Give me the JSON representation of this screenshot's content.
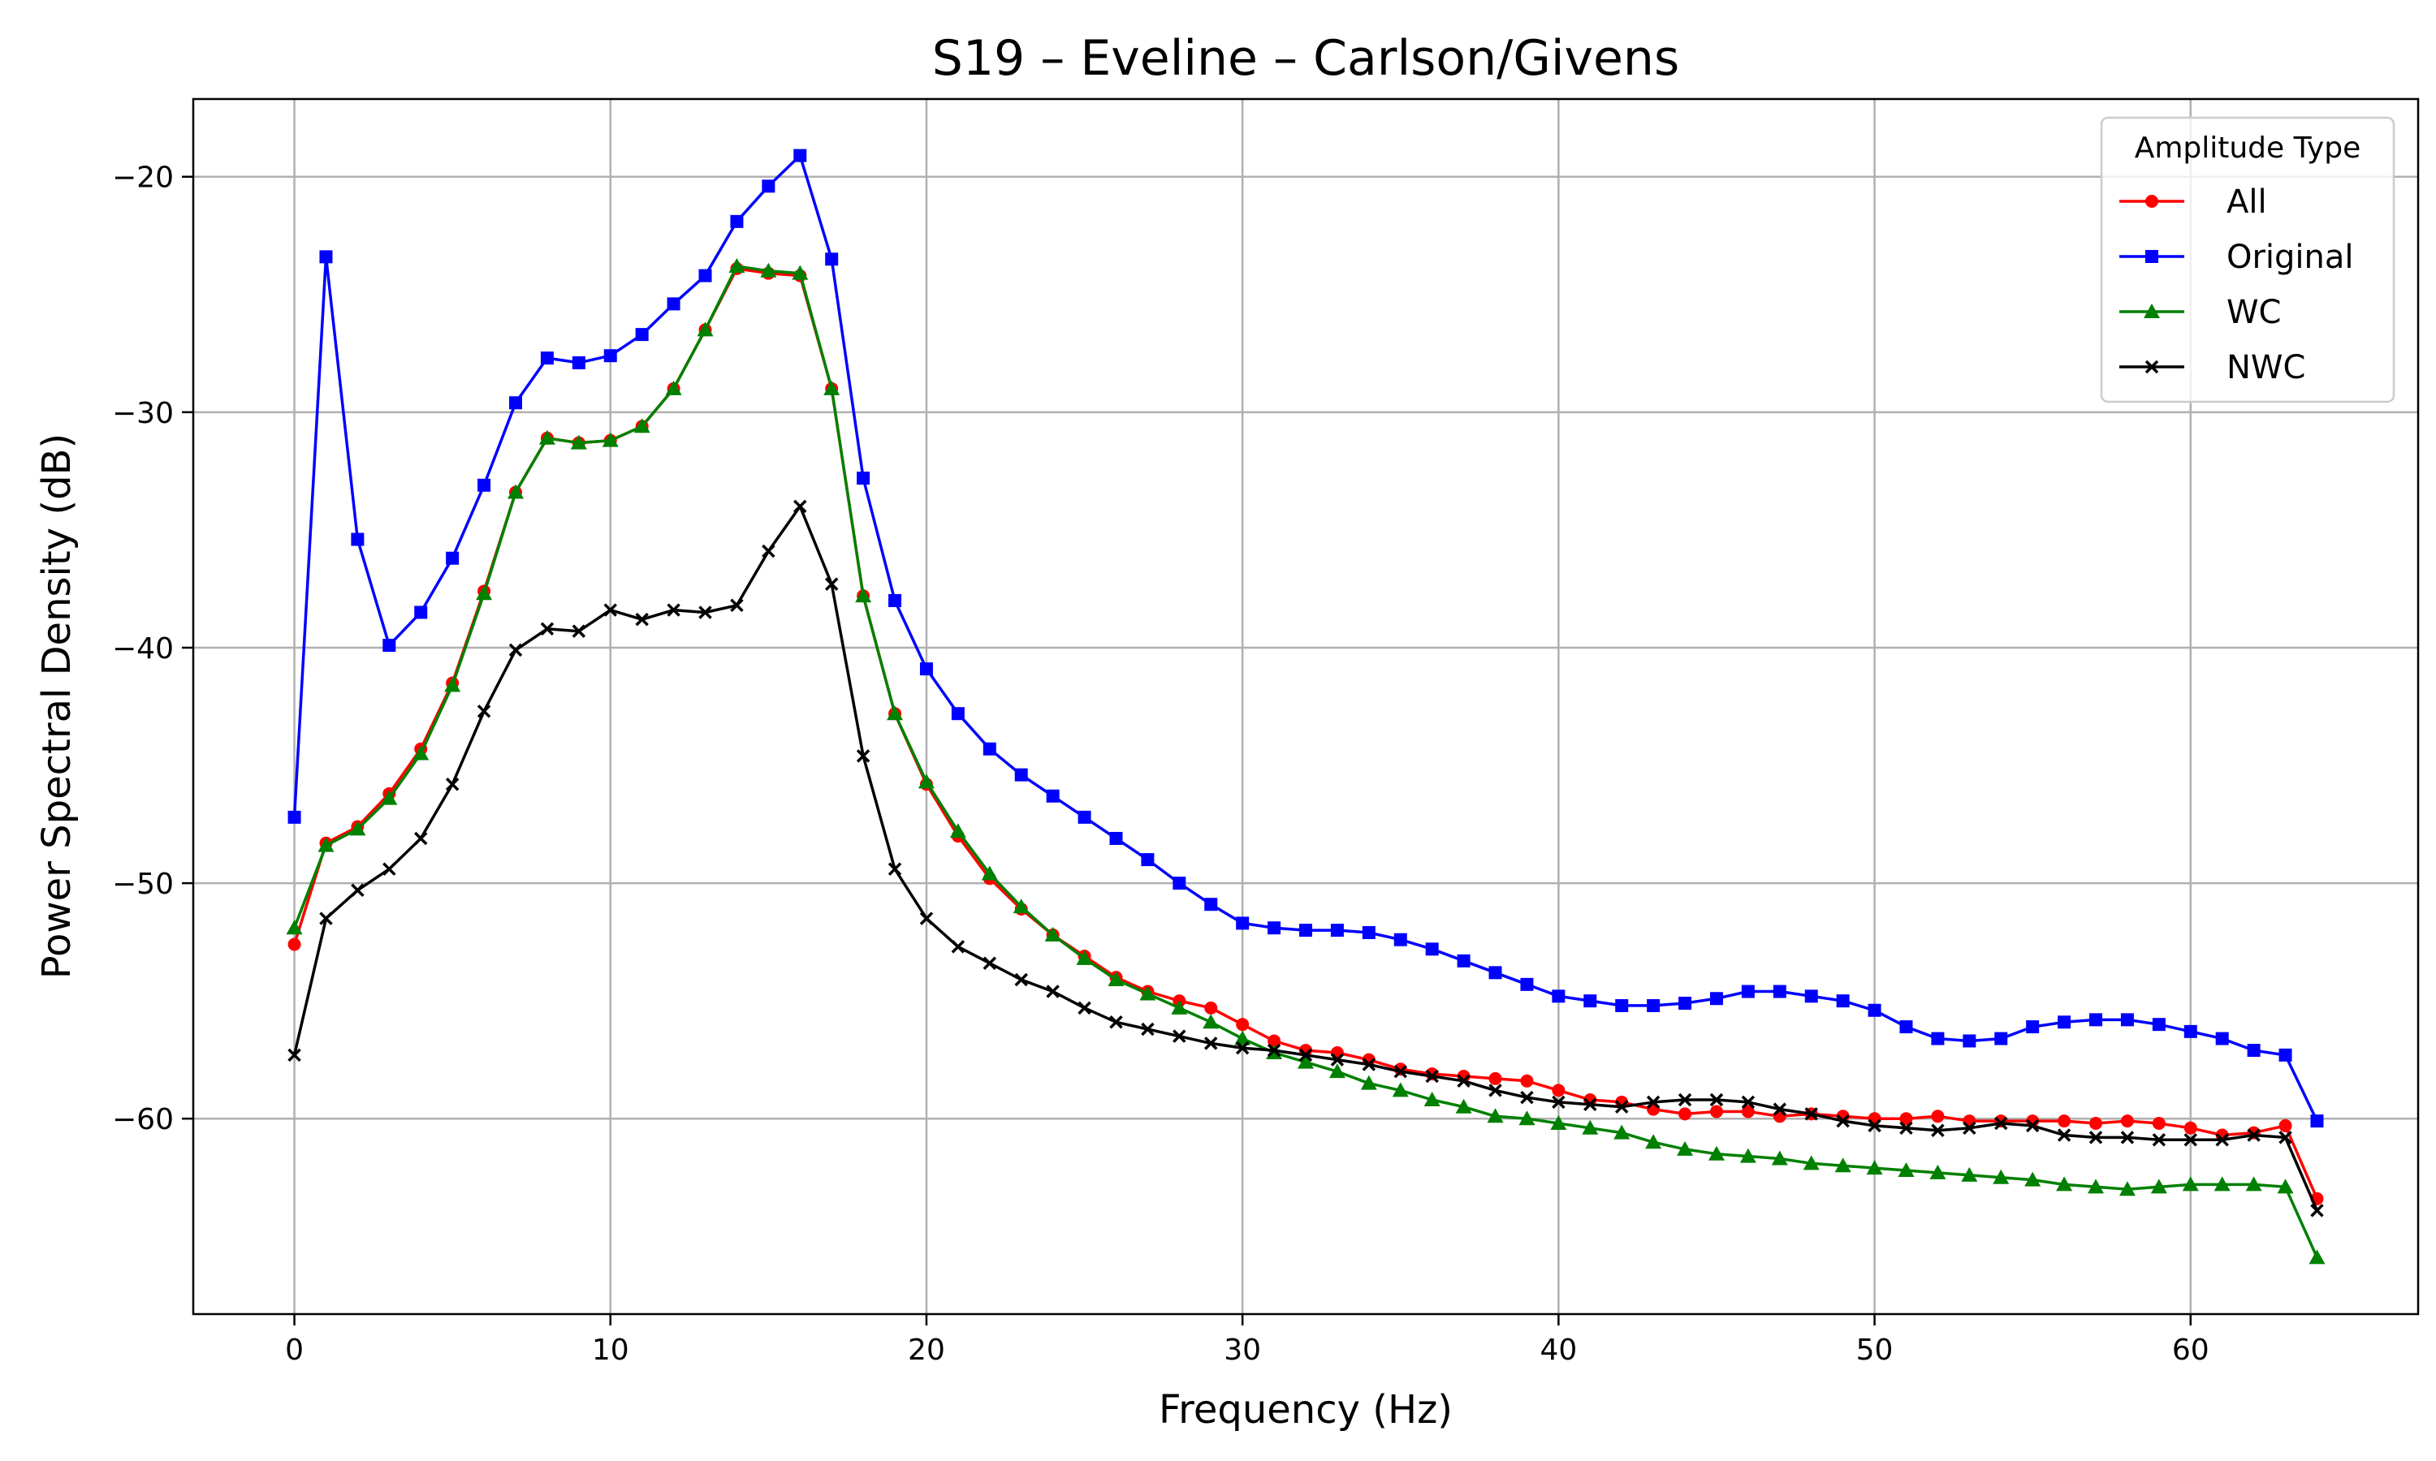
{
  "chart_data": {
    "type": "line",
    "title": "S19 – Eveline – Carlson/Givens",
    "xlabel": "Frequency (Hz)",
    "ylabel": "Power Spectral Density (dB)",
    "xlim": [
      -3.2,
      67.2
    ],
    "ylim": [
      -68.3,
      -16.7
    ],
    "xticks": [
      0,
      10,
      20,
      30,
      40,
      50,
      60
    ],
    "yticks": [
      -60,
      -50,
      -40,
      -30,
      -20
    ],
    "xtick_labels": [
      "0",
      "10",
      "20",
      "30",
      "40",
      "50",
      "60"
    ],
    "ytick_labels": [
      "−60",
      "−50",
      "−40",
      "−30",
      "−20"
    ],
    "grid": true,
    "legend": {
      "title": "Amplitude Type",
      "placement": "top-right"
    },
    "x": [
      0,
      1,
      2,
      3,
      4,
      5,
      6,
      7,
      8,
      9,
      10,
      11,
      12,
      13,
      14,
      15,
      16,
      17,
      18,
      19,
      20,
      21,
      22,
      23,
      24,
      25,
      26,
      27,
      28,
      29,
      30,
      31,
      32,
      33,
      34,
      35,
      36,
      37,
      38,
      39,
      40,
      41,
      42,
      43,
      44,
      45,
      46,
      47,
      48,
      49,
      50,
      51,
      52,
      53,
      54,
      55,
      56,
      57,
      58,
      59,
      60,
      61,
      62,
      63,
      64
    ],
    "series": [
      {
        "name": "All",
        "color": "#ff0000",
        "marker": "circle",
        "values": [
          -52.6,
          -48.3,
          -47.6,
          -46.2,
          -44.3,
          -41.5,
          -37.6,
          -33.4,
          -31.1,
          -31.3,
          -31.2,
          -30.6,
          -29.0,
          -26.5,
          -23.9,
          -24.1,
          -24.2,
          -29.0,
          -37.8,
          -42.8,
          -45.8,
          -48.0,
          -49.8,
          -51.1,
          -52.2,
          -53.1,
          -54.0,
          -54.6,
          -55.0,
          -55.3,
          -56.0,
          -56.7,
          -57.1,
          -57.2,
          -57.5,
          -57.9,
          -58.1,
          -58.2,
          -58.3,
          -58.4,
          -58.8,
          -59.2,
          -59.3,
          -59.6,
          -59.8,
          -59.7,
          -59.7,
          -59.9,
          -59.8,
          -59.9,
          -60.0,
          -60.0,
          -59.9,
          -60.1,
          -60.1,
          -60.1,
          -60.1,
          -60.2,
          -60.1,
          -60.2,
          -60.4,
          -60.7,
          -60.6,
          -60.3,
          -63.4
        ]
      },
      {
        "name": "Original",
        "color": "#0000ff",
        "marker": "square",
        "values": [
          -47.2,
          -23.4,
          -35.4,
          -39.9,
          -38.5,
          -36.2,
          -33.1,
          -29.6,
          -27.7,
          -27.9,
          -27.6,
          -26.7,
          -25.4,
          -24.2,
          -21.9,
          -20.4,
          -19.1,
          -23.5,
          -32.8,
          -38.0,
          -40.9,
          -42.8,
          -44.3,
          -45.4,
          -46.3,
          -47.2,
          -48.1,
          -49.0,
          -50.0,
          -50.9,
          -51.7,
          -51.9,
          -52.0,
          -52.0,
          -52.1,
          -52.4,
          -52.8,
          -53.3,
          -53.8,
          -54.3,
          -54.8,
          -55.0,
          -55.2,
          -55.2,
          -55.1,
          -54.9,
          -54.6,
          -54.6,
          -54.8,
          -55.0,
          -55.4,
          -56.1,
          -56.6,
          -56.7,
          -56.6,
          -56.1,
          -55.9,
          -55.8,
          -55.8,
          -56.0,
          -56.3,
          -56.6,
          -57.1,
          -57.3,
          -60.1
        ]
      },
      {
        "name": "WC",
        "color": "#008000",
        "marker": "triangle",
        "values": [
          -51.9,
          -48.4,
          -47.7,
          -46.4,
          -44.5,
          -41.6,
          -37.7,
          -33.4,
          -31.1,
          -31.3,
          -31.2,
          -30.6,
          -29.0,
          -26.5,
          -23.8,
          -24.0,
          -24.1,
          -29.0,
          -37.8,
          -42.8,
          -45.7,
          -47.8,
          -49.6,
          -51.0,
          -52.2,
          -53.2,
          -54.1,
          -54.7,
          -55.3,
          -55.9,
          -56.6,
          -57.2,
          -57.6,
          -58.0,
          -58.5,
          -58.8,
          -59.2,
          -59.5,
          -59.9,
          -60.0,
          -60.2,
          -60.4,
          -60.6,
          -61.0,
          -61.3,
          -61.5,
          -61.6,
          -61.7,
          -61.9,
          -62.0,
          -62.1,
          -62.2,
          -62.3,
          -62.4,
          -62.5,
          -62.6,
          -62.8,
          -62.9,
          -63.0,
          -62.9,
          -62.8,
          -62.8,
          -62.8,
          -62.9,
          -65.9
        ]
      },
      {
        "name": "NWC",
        "color": "#000000",
        "marker": "x",
        "values": [
          -57.3,
          -51.5,
          -50.3,
          -49.4,
          -48.1,
          -45.8,
          -42.7,
          -40.1,
          -39.2,
          -39.3,
          -38.4,
          -38.8,
          -38.4,
          -38.5,
          -38.2,
          -35.9,
          -34.0,
          -37.3,
          -44.6,
          -49.4,
          -51.5,
          -52.7,
          -53.4,
          -54.1,
          -54.6,
          -55.3,
          -55.9,
          -56.2,
          -56.5,
          -56.8,
          -57.0,
          -57.1,
          -57.3,
          -57.5,
          -57.7,
          -58.0,
          -58.2,
          -58.4,
          -58.8,
          -59.1,
          -59.3,
          -59.4,
          -59.5,
          -59.3,
          -59.2,
          -59.2,
          -59.3,
          -59.6,
          -59.8,
          -60.1,
          -60.3,
          -60.4,
          -60.5,
          -60.4,
          -60.2,
          -60.3,
          -60.7,
          -60.8,
          -60.8,
          -60.9,
          -60.9,
          -60.9,
          -60.7,
          -60.8,
          -63.9
        ]
      }
    ]
  }
}
